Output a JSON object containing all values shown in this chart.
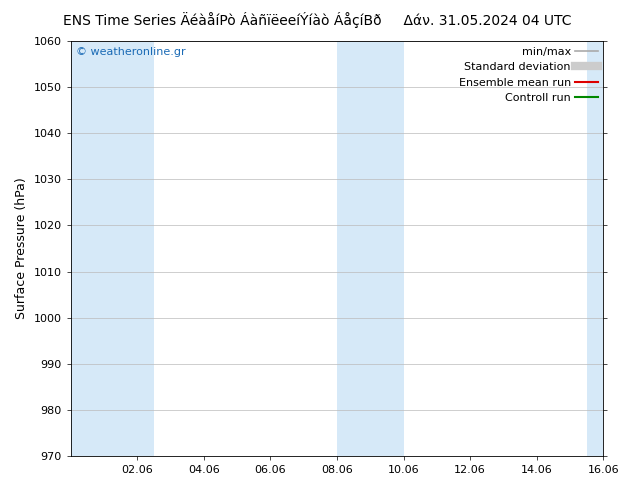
{
  "title_left": "ENS Time Series ÄéàåíPò ÁàñïëeeíÝíàò ÁåçíBð",
  "title_right": "Δάν. 31.05.2024 04 UTC",
  "ylabel": "Surface Pressure (hPa)",
  "ylim": [
    970,
    1060
  ],
  "yticks": [
    970,
    980,
    990,
    1000,
    1010,
    1020,
    1030,
    1040,
    1050,
    1060
  ],
  "xlim": [
    0,
    16
  ],
  "xtick_positions": [
    2,
    4,
    6,
    8,
    10,
    12,
    14,
    16
  ],
  "xtick_labels": [
    "02.06",
    "04.06",
    "06.06",
    "08.06",
    "10.06",
    "12.06",
    "14.06",
    "16.06"
  ],
  "background_color": "#ffffff",
  "plot_bg_color": "#ffffff",
  "shaded_bands": [
    {
      "xmin": 0.0,
      "xmax": 2.5
    },
    {
      "xmin": 8.0,
      "xmax": 10.0
    },
    {
      "xmin": 15.5,
      "xmax": 16.5
    }
  ],
  "shaded_color": "#d6e9f8",
  "grid_color": "#bbbbbb",
  "watermark_text": "© weatheronline.gr",
  "watermark_color": "#1a6ab5",
  "legend_entries": [
    {
      "label": "min/max",
      "color": "#aaaaaa",
      "lw": 1.2,
      "style": "solid"
    },
    {
      "label": "Standard deviation",
      "color": "#cccccc",
      "lw": 6,
      "style": "solid"
    },
    {
      "label": "Ensemble mean run",
      "color": "#dd0000",
      "lw": 1.5,
      "style": "solid"
    },
    {
      "label": "Controll run",
      "color": "#008800",
      "lw": 1.5,
      "style": "solid"
    }
  ],
  "title_fontsize": 10,
  "ylabel_fontsize": 9,
  "tick_fontsize": 8,
  "legend_fontsize": 8,
  "fig_width": 6.34,
  "fig_height": 4.9,
  "dpi": 100
}
